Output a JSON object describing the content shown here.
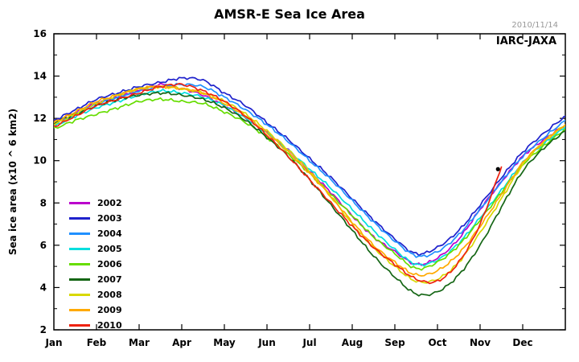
{
  "chart": {
    "title": "AMSR-E Sea Ice Area",
    "date_stamp": "2010/11/14",
    "source": "IARC-JAXA",
    "y_label": "Sea ice area (x10 ^ 6 km2)"
  },
  "chart_data": {
    "type": "line",
    "title": "AMSR-E Sea Ice Area",
    "xlabel": "",
    "ylabel": "Sea ice area (x10 ^ 6 km2)",
    "x_unit": "months (0 = Jan 1, 12 = Dec 31)",
    "x": [
      0,
      0.5,
      1,
      1.5,
      2,
      2.5,
      3,
      3.5,
      4,
      4.5,
      5,
      5.5,
      6,
      6.5,
      7,
      7.5,
      8,
      8.5,
      9,
      9.5,
      10,
      10.5,
      11,
      11.5,
      12
    ],
    "month_labels": [
      "Jan",
      "Feb",
      "Mar",
      "Apr",
      "May",
      "Jun",
      "Jul",
      "Aug",
      "Sep",
      "Oct",
      "Nov",
      "Dec"
    ],
    "ylim": [
      2,
      16
    ],
    "y_ticks": [
      2,
      4,
      6,
      8,
      10,
      12,
      14,
      16
    ],
    "grid": false,
    "legend_position": "center-left",
    "series": [
      {
        "name": "2002",
        "color": "#bb00cc",
        "values": [
          11.8,
          12.3,
          12.7,
          13.0,
          13.3,
          13.6,
          13.4,
          13.1,
          12.6,
          12.0,
          11.3,
          10.5,
          9.5,
          8.5,
          7.4,
          6.4,
          5.7,
          5.1,
          5.4,
          6.3,
          7.7,
          9.0,
          10.2,
          11.0,
          11.7
        ]
      },
      {
        "name": "2003",
        "color": "#1f22cc",
        "values": [
          11.9,
          12.4,
          12.9,
          13.2,
          13.5,
          13.7,
          13.9,
          13.8,
          13.2,
          12.6,
          11.8,
          11.0,
          10.1,
          9.2,
          8.2,
          7.2,
          6.3,
          5.6,
          5.9,
          6.7,
          7.9,
          9.2,
          10.4,
          11.3,
          12.1
        ]
      },
      {
        "name": "2004",
        "color": "#2090ff",
        "values": [
          11.7,
          12.2,
          12.7,
          13.0,
          13.3,
          13.5,
          13.6,
          13.5,
          13.0,
          12.4,
          11.7,
          10.9,
          10.0,
          9.1,
          8.1,
          7.1,
          6.2,
          5.5,
          5.7,
          6.5,
          7.7,
          9.0,
          10.2,
          11.1,
          11.9
        ]
      },
      {
        "name": "2005",
        "color": "#00dede",
        "values": [
          11.6,
          12.1,
          12.5,
          12.8,
          13.1,
          13.3,
          13.2,
          13.0,
          12.6,
          12.0,
          11.3,
          10.5,
          9.6,
          8.7,
          7.7,
          6.7,
          5.8,
          5.1,
          5.3,
          6.1,
          7.3,
          8.6,
          9.9,
          10.8,
          11.6
        ]
      },
      {
        "name": "2006",
        "color": "#66dd00",
        "values": [
          11.5,
          11.9,
          12.2,
          12.5,
          12.8,
          12.9,
          12.8,
          12.7,
          12.3,
          11.8,
          11.1,
          10.3,
          9.4,
          8.4,
          7.4,
          6.4,
          5.6,
          4.9,
          5.2,
          6.0,
          7.2,
          8.5,
          9.8,
          10.7,
          11.5
        ]
      },
      {
        "name": "2007",
        "color": "#156615",
        "values": [
          11.8,
          12.2,
          12.6,
          12.9,
          13.1,
          13.2,
          13.1,
          12.9,
          12.5,
          11.9,
          11.1,
          10.2,
          9.1,
          7.9,
          6.7,
          5.5,
          4.5,
          3.7,
          3.8,
          4.6,
          6.0,
          7.8,
          9.5,
          10.6,
          11.4
        ]
      },
      {
        "name": "2008",
        "color": "#d8d800",
        "values": [
          11.7,
          12.2,
          12.7,
          13.1,
          13.4,
          13.5,
          13.4,
          13.2,
          12.8,
          12.2,
          11.4,
          10.5,
          9.5,
          8.3,
          7.0,
          5.9,
          5.0,
          4.3,
          4.4,
          5.2,
          6.6,
          8.2,
          9.8,
          10.9,
          11.7
        ]
      },
      {
        "name": "2009",
        "color": "#ffaa00",
        "values": [
          11.8,
          12.3,
          12.8,
          13.1,
          13.4,
          13.5,
          13.4,
          13.2,
          12.7,
          12.1,
          11.3,
          10.4,
          9.4,
          8.3,
          7.1,
          6.0,
          5.2,
          4.6,
          4.8,
          5.6,
          6.9,
          8.4,
          9.9,
          10.9,
          11.7
        ]
      },
      {
        "name": "2010",
        "color": "#ee2211",
        "values": [
          11.6,
          12.1,
          12.6,
          12.9,
          13.2,
          13.5,
          13.6,
          13.3,
          12.8,
          12.1,
          11.2,
          10.2,
          9.1,
          8.0,
          6.9,
          5.9,
          5.1,
          4.4,
          4.3,
          5.2,
          7.0,
          9.7
        ]
      }
    ],
    "latest_marker": {
      "x": 10.42,
      "y": 9.6,
      "color": "#000000"
    }
  }
}
